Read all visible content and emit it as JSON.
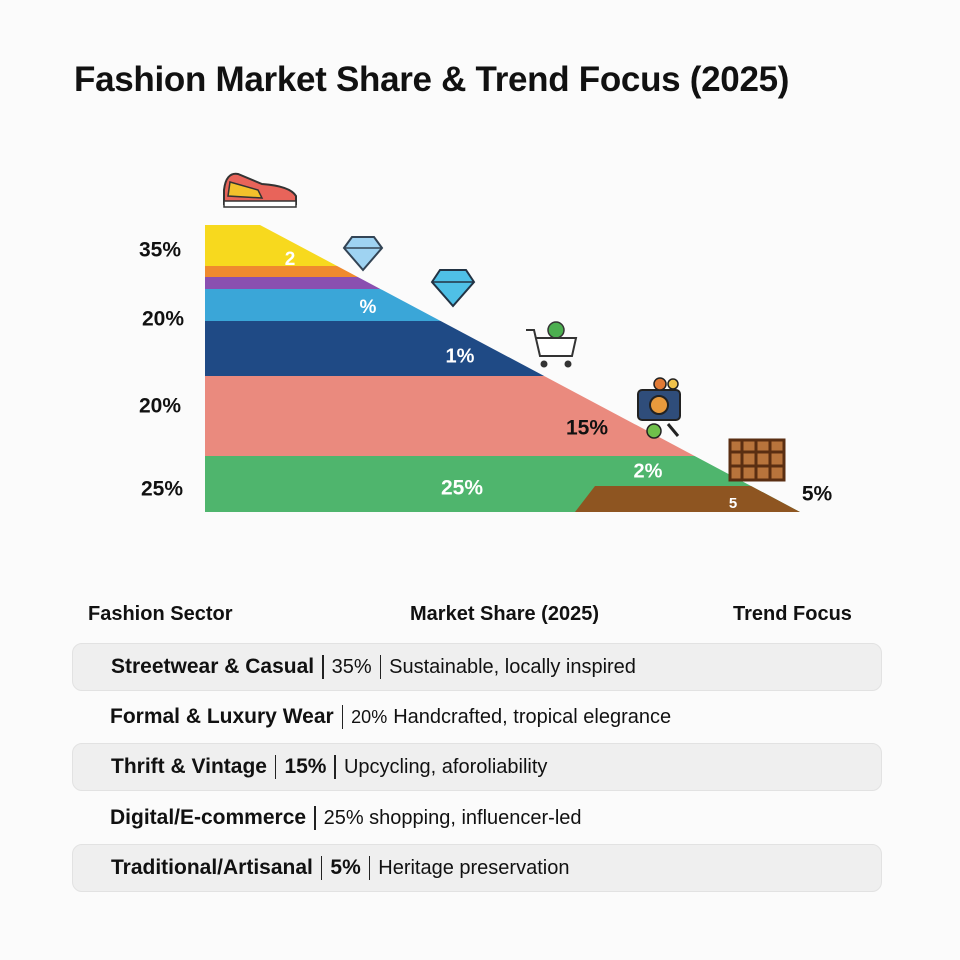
{
  "title": "Fashion Market Share & Trend Focus (2025)",
  "graphic": {
    "left_labels": [
      "35%",
      "20%",
      "20%",
      "25%"
    ],
    "band_labels": [
      "2",
      "%",
      "1%",
      "15%",
      "2%",
      "25%",
      "5"
    ],
    "right_label": "5%"
  },
  "table": {
    "headers": [
      "Fashion Sector",
      "Market Share (2025)",
      "Trend Focus"
    ],
    "rows": [
      [
        "Streetwear & Casual",
        "35%",
        "Sustainable, locally inspired"
      ],
      [
        "Formal & Luxury Wear",
        "20%",
        "Handcrafted, tropical elegrance"
      ],
      [
        "Thrift & Vintage",
        "15%",
        "Upcycling, aforoliability"
      ],
      [
        "Digital/E-commerce",
        "25% shopping, influencer-led"
      ],
      [
        "Traditional/Artisanal",
        "5%",
        "Heritage preservation"
      ]
    ]
  }
}
